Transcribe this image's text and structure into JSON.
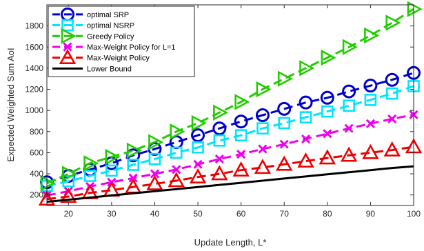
{
  "chart_data": {
    "type": "line",
    "xlabel": "Update Length, L*",
    "ylabel": "Expected Weighted Sum AoI",
    "xlim": [
      15,
      100
    ],
    "ylim": [
      100,
      2000
    ],
    "xticks": [
      20,
      30,
      40,
      50,
      60,
      70,
      80,
      90,
      100
    ],
    "yticks": [
      200,
      400,
      600,
      800,
      1000,
      1200,
      1400,
      1600,
      1800
    ],
    "x": [
      15,
      20,
      25,
      30,
      35,
      40,
      45,
      50,
      55,
      60,
      65,
      70,
      75,
      80,
      85,
      90,
      95,
      100
    ],
    "legend_position": "top-left",
    "grid": false,
    "series": [
      {
        "name": "optimal SRP",
        "color": "#0000cc",
        "marker": "circle",
        "values": [
          320,
          380,
          440,
          500,
          575,
          635,
          700,
          765,
          830,
          895,
          955,
          1015,
          1075,
          1120,
          1180,
          1235,
          1290,
          1355
        ]
      },
      {
        "name": "optimal NSRP",
        "color": "#00e5ff",
        "marker": "square",
        "values": [
          285,
          330,
          380,
          430,
          485,
          540,
          600,
          650,
          715,
          765,
          830,
          880,
          935,
          990,
          1045,
          1100,
          1160,
          1230
        ]
      },
      {
        "name": "Greedy Policy",
        "color": "#22cc00",
        "marker": "triangle-right",
        "values": [
          310,
          400,
          500,
          560,
          620,
          700,
          800,
          880,
          980,
          1080,
          1200,
          1300,
          1400,
          1500,
          1600,
          1710,
          1830,
          1960
        ]
      },
      {
        "name": "Max-Weight Policy for L=1",
        "color": "#ee00ee",
        "marker": "x",
        "values": [
          195,
          235,
          280,
          320,
          360,
          400,
          440,
          490,
          540,
          585,
          635,
          680,
          730,
          780,
          830,
          875,
          920,
          960
        ]
      },
      {
        "name": "Max-Weight Policy",
        "color": "#ee0000",
        "marker": "triangle-up",
        "values": [
          160,
          185,
          220,
          245,
          275,
          305,
          335,
          370,
          400,
          435,
          460,
          490,
          520,
          550,
          575,
          600,
          625,
          655
        ]
      },
      {
        "name": "Lower Bound",
        "color": "#000000",
        "marker": "none",
        "values": [
          135,
          155,
          175,
          195,
          215,
          235,
          255,
          275,
          295,
          315,
          335,
          355,
          375,
          395,
          415,
          435,
          455,
          470
        ]
      }
    ]
  }
}
